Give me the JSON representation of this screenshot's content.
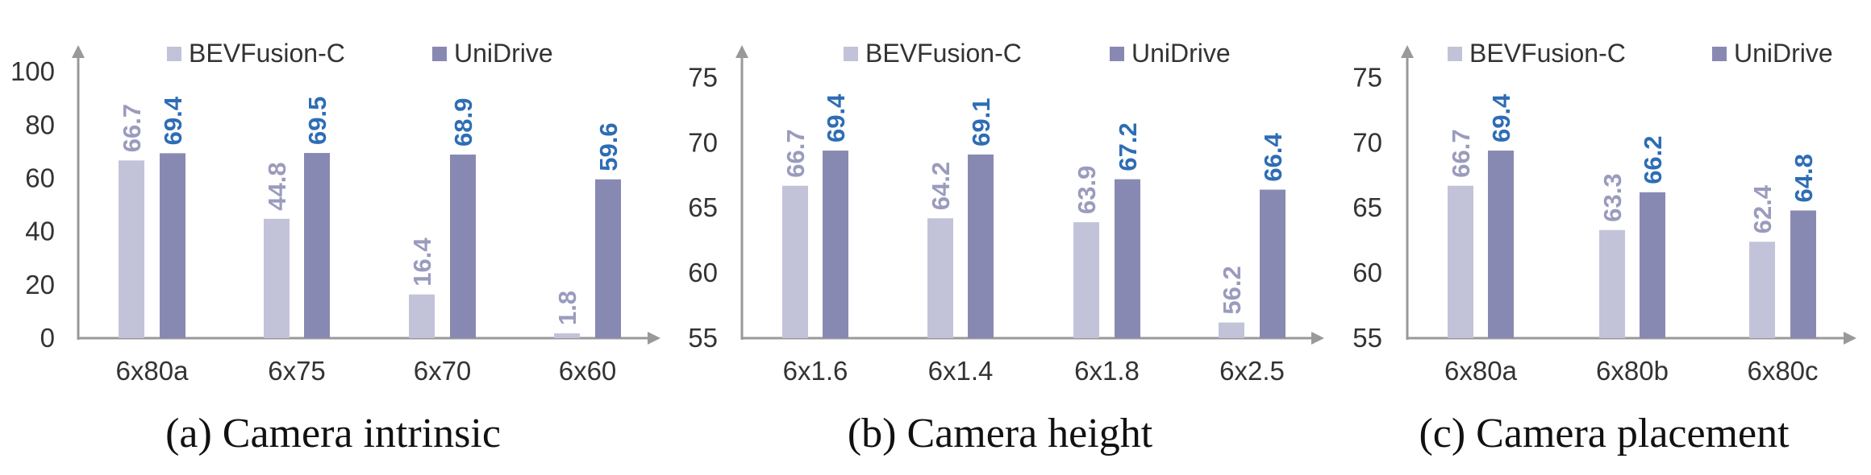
{
  "colors": {
    "baseline": "#c2c3d9",
    "unidrive": "#8889b3",
    "baseline_label": "#9a9bbd",
    "unidrive_label": "#2e6db4",
    "axis": "#999999"
  },
  "chart_data": [
    {
      "type": "bar",
      "caption": "(a) Camera intrinsic",
      "categories": [
        "6x80a",
        "6x75",
        "6x70",
        "6x60"
      ],
      "series": [
        {
          "name": "BEVFusion-C",
          "values": [
            66.7,
            44.8,
            16.4,
            1.8
          ]
        },
        {
          "name": "UniDrive",
          "values": [
            69.4,
            69.5,
            68.9,
            59.6
          ]
        }
      ],
      "yticks": [
        0,
        20,
        40,
        60,
        80,
        100
      ],
      "ylim": [
        0,
        110
      ],
      "legend": "top"
    },
    {
      "type": "bar",
      "caption": "(b) Camera height",
      "categories": [
        "6x1.6",
        "6x1.4",
        "6x1.8",
        "6x2.5"
      ],
      "series": [
        {
          "name": "BEVFusion-C",
          "values": [
            66.7,
            64.2,
            63.9,
            56.2
          ]
        },
        {
          "name": "UniDrive",
          "values": [
            69.4,
            69.1,
            67.2,
            66.4
          ]
        }
      ],
      "yticks": [
        55,
        60,
        65,
        70,
        75
      ],
      "ylim": [
        55,
        77.5
      ],
      "legend": "top"
    },
    {
      "type": "bar",
      "caption": "(c) Camera placement",
      "categories": [
        "6x80a",
        "6x80b",
        "6x80c"
      ],
      "series": [
        {
          "name": "BEVFusion-C",
          "values": [
            66.7,
            63.3,
            62.4
          ]
        },
        {
          "name": "UniDrive",
          "values": [
            69.4,
            66.2,
            64.8
          ]
        }
      ],
      "yticks": [
        55,
        60,
        65,
        70,
        75
      ],
      "ylim": [
        55,
        77.5
      ],
      "legend": "top"
    }
  ]
}
